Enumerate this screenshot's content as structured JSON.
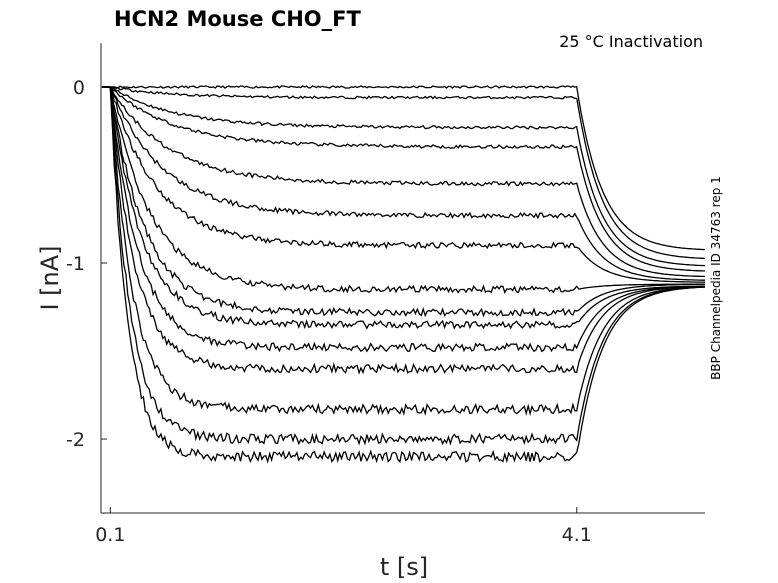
{
  "chart_data": {
    "type": "line",
    "title": "HCN2  Mouse  CHO_FT",
    "subtitle": "25 °C  Inactivation",
    "xlabel": "t [s]",
    "ylabel": "I [nA]",
    "side_label": "BBP Channelpedia ID 34763 rep 1",
    "x_ticks": [
      {
        "value": 0.1,
        "label": "0.1"
      },
      {
        "value": 4.1,
        "label": "4.1"
      }
    ],
    "y_ticks": [
      {
        "value": 0,
        "label": "0"
      },
      {
        "value": -1,
        "label": "-1"
      },
      {
        "value": -2,
        "label": "-2"
      }
    ],
    "xlim": [
      0.02,
      5.2
    ],
    "ylim": [
      -2.42,
      0.25
    ],
    "grid": false,
    "step_start": 0.1,
    "step_end": 4.1,
    "tail_end": 5.2,
    "series": [
      {
        "steady": 0.0,
        "tau": 0.3,
        "tail": -0.93
      },
      {
        "steady": -0.06,
        "tau": 0.5,
        "tail": -0.98
      },
      {
        "steady": -0.23,
        "tau": 0.55,
        "tail": -1.02
      },
      {
        "steady": -0.34,
        "tau": 0.55,
        "tail": -1.05
      },
      {
        "steady": -0.55,
        "tau": 0.5,
        "tail": -1.08
      },
      {
        "steady": -0.73,
        "tau": 0.45,
        "tail": -1.1
      },
      {
        "steady": -0.9,
        "tau": 0.4,
        "tail": -1.11
      },
      {
        "steady": -1.15,
        "tau": 0.35,
        "tail": -1.12
      },
      {
        "steady": -1.28,
        "tau": 0.3,
        "tail": -1.12
      },
      {
        "steady": -1.35,
        "tau": 0.27,
        "tail": -1.13
      },
      {
        "steady": -1.48,
        "tau": 0.24,
        "tail": -1.13
      },
      {
        "steady": -1.6,
        "tau": 0.21,
        "tail": -1.13
      },
      {
        "steady": -1.83,
        "tau": 0.19,
        "tail": -1.13
      },
      {
        "steady": -2.0,
        "tau": 0.17,
        "tail": -1.13
      },
      {
        "steady": -2.1,
        "tau": 0.15,
        "tail": -1.13
      }
    ]
  }
}
